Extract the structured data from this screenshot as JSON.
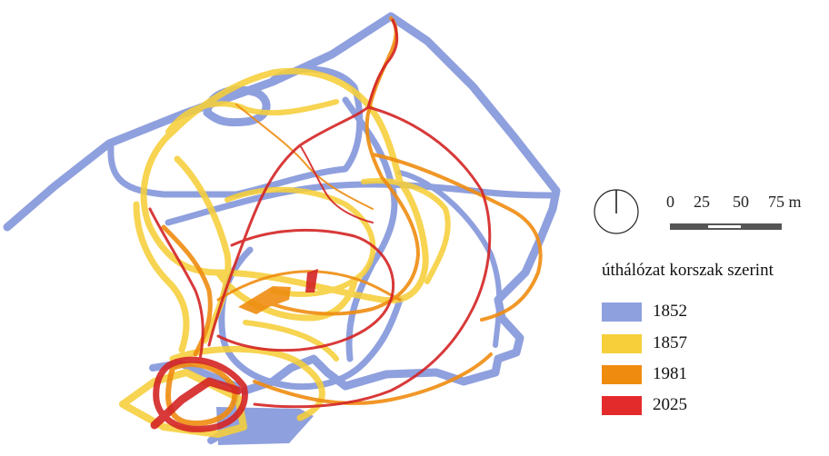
{
  "legend": {
    "title": "úthálózat korszak szerint",
    "items": [
      {
        "label": "1852",
        "color": "#8fa0de"
      },
      {
        "label": "1857",
        "color": "#f6cf3a"
      },
      {
        "label": "1981",
        "color": "#ef8c10"
      },
      {
        "label": "2025",
        "color": "#d42424"
      }
    ]
  },
  "scale_bar": {
    "labels": [
      "0",
      "25",
      "50",
      "75 m"
    ]
  },
  "north_arrow": {
    "icon": "north-arrow-icon"
  }
}
